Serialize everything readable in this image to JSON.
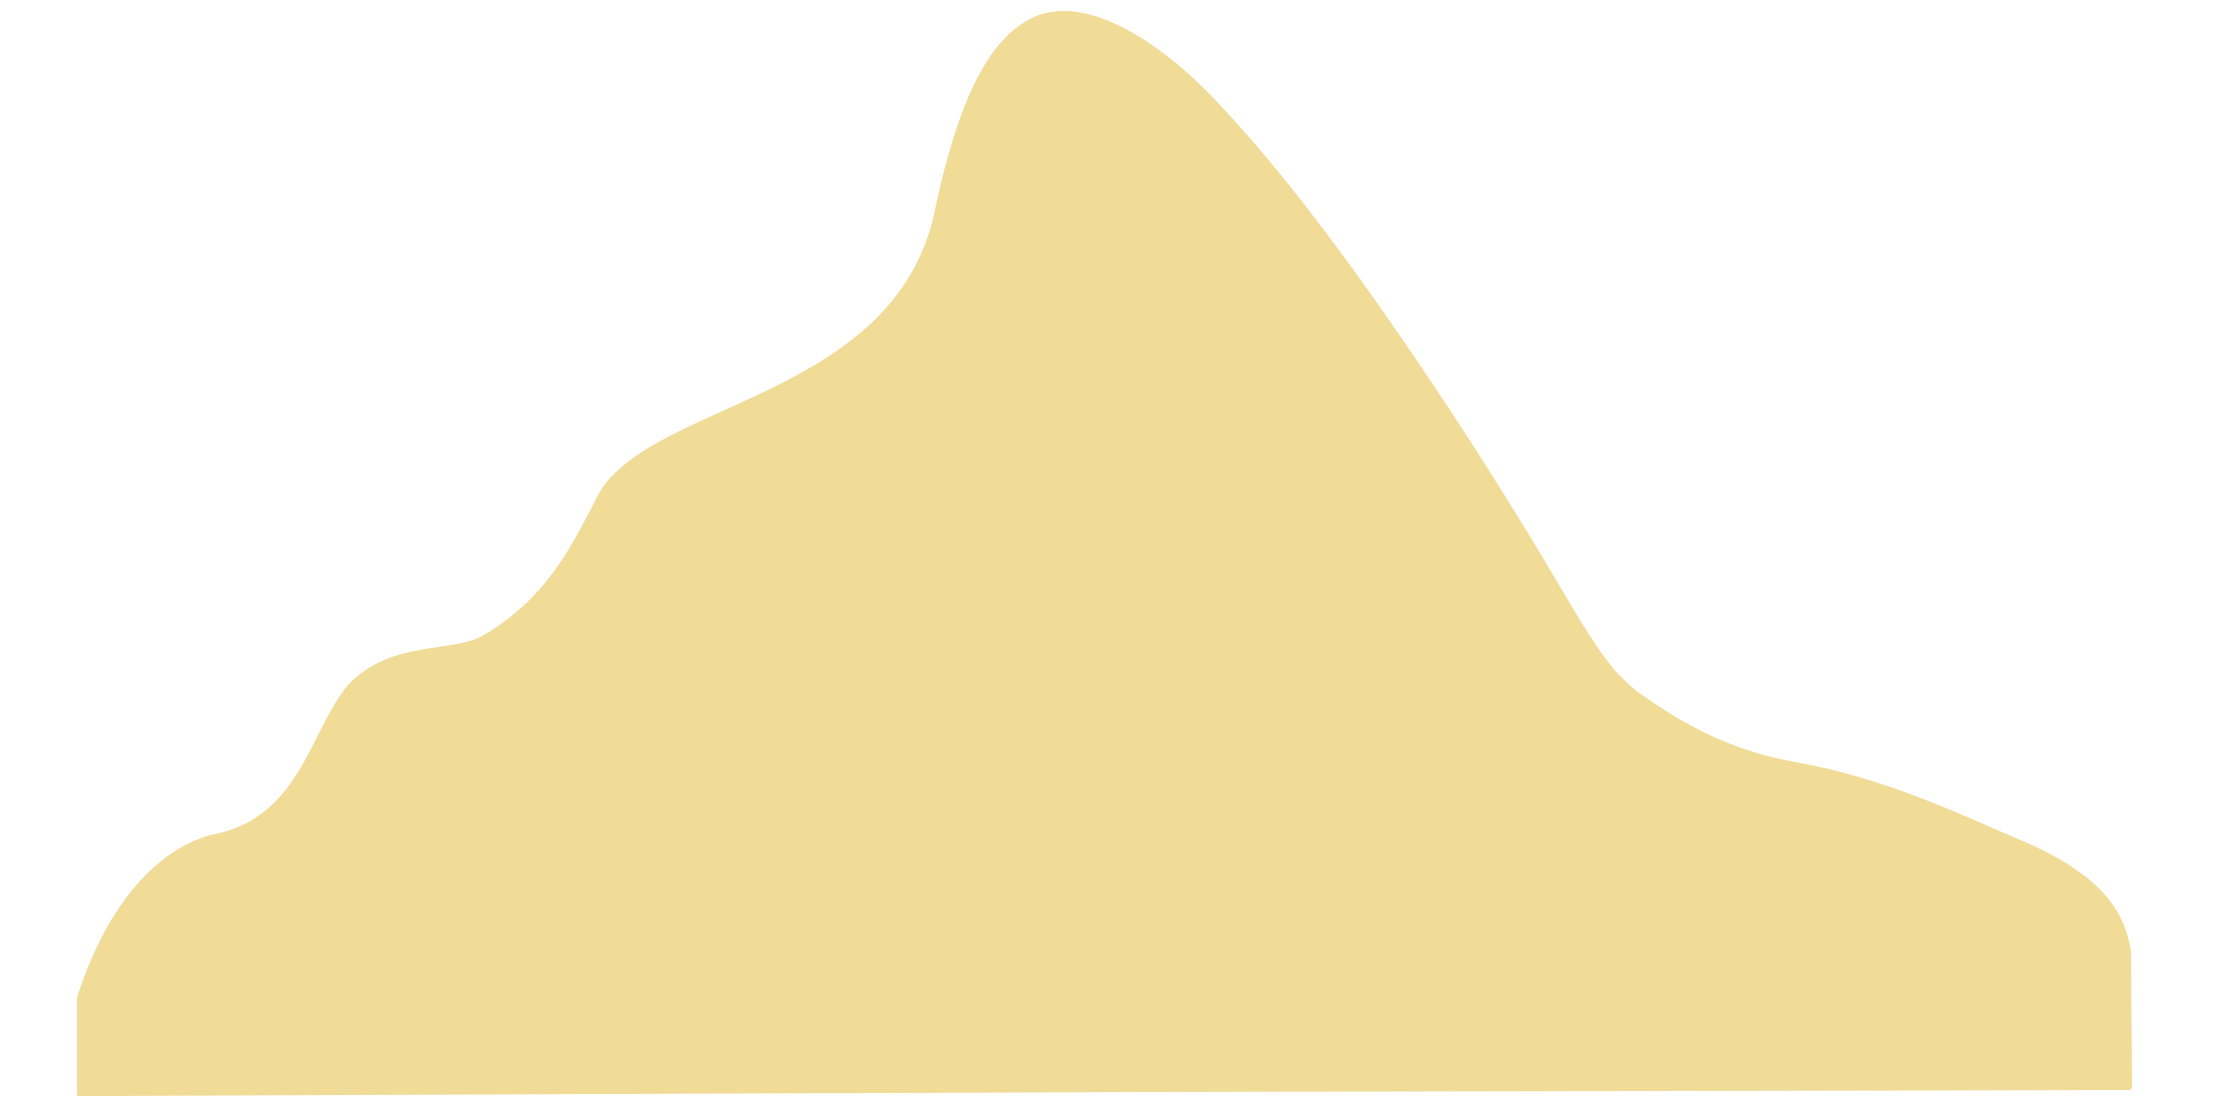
{
  "shape": {
    "kind": "mountain-silhouette",
    "fill_color": "#F0DB97",
    "background_color": "#FFFFFF"
  }
}
